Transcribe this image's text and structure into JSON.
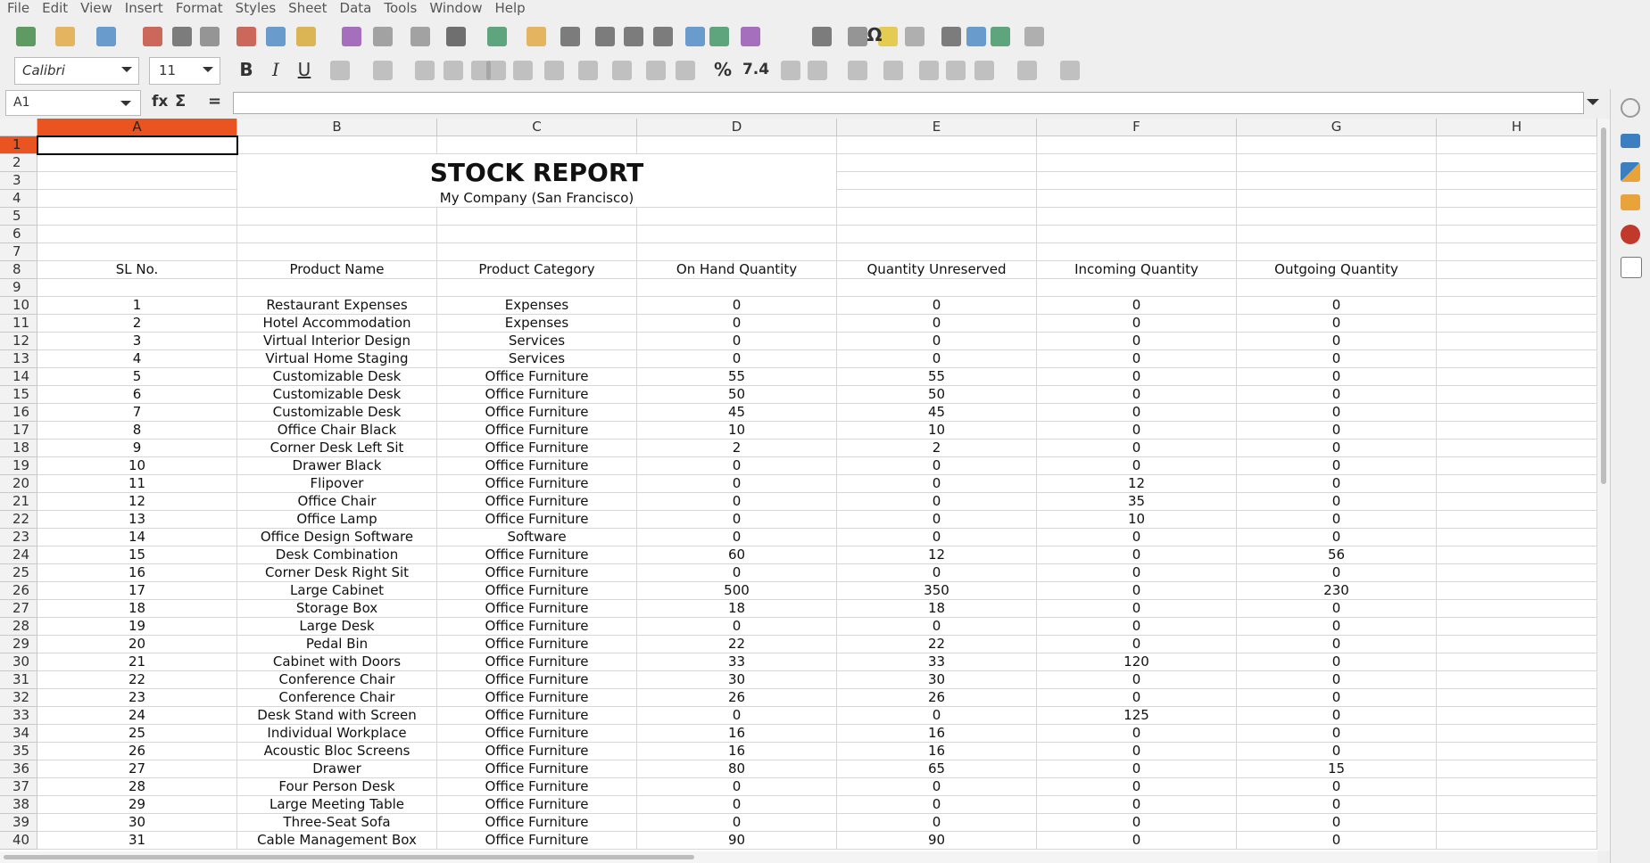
{
  "menu": [
    "File",
    "Edit",
    "View",
    "Insert",
    "Format",
    "Styles",
    "Sheet",
    "Data",
    "Tools",
    "Window",
    "Help"
  ],
  "toolbar": {
    "font_name": "Calibri",
    "font_size": "11",
    "bold": "B",
    "italic": "I",
    "underline": "U",
    "percent": "%",
    "number": "7.4",
    "special_char": "Ω"
  },
  "formula_bar": {
    "cell_ref": "A1",
    "function_wizard": "fx",
    "sum": "Σ",
    "formula": "="
  },
  "sheet": {
    "columns": [
      "A",
      "B",
      "C",
      "D",
      "E",
      "F",
      "G",
      "H"
    ],
    "row_numbers": [
      1,
      2,
      3,
      4,
      5,
      6,
      7,
      8,
      9,
      10,
      11,
      12,
      13,
      14,
      15,
      16,
      17,
      18,
      19,
      20,
      21,
      22,
      23,
      24,
      25,
      26,
      27,
      28,
      29,
      30,
      31,
      32,
      33,
      34,
      35,
      36,
      37,
      38,
      39,
      40
    ],
    "title": "STOCK REPORT",
    "subtitle": "My Company (San Francisco)",
    "headers": [
      "SL No.",
      "Product Name",
      "Product Category",
      "On Hand Quantity",
      "Quantity Unreserved",
      "Incoming Quantity",
      "Outgoing Quantity"
    ],
    "rows": [
      [
        1,
        "Restaurant Expenses",
        "Expenses",
        0,
        0,
        0,
        0
      ],
      [
        2,
        "Hotel Accommodation",
        "Expenses",
        0,
        0,
        0,
        0
      ],
      [
        3,
        "Virtual Interior Design",
        "Services",
        0,
        0,
        0,
        0
      ],
      [
        4,
        "Virtual Home Staging",
        "Services",
        0,
        0,
        0,
        0
      ],
      [
        5,
        "Customizable Desk",
        "Office Furniture",
        55,
        55,
        0,
        0
      ],
      [
        6,
        "Customizable Desk",
        "Office Furniture",
        50,
        50,
        0,
        0
      ],
      [
        7,
        "Customizable Desk",
        "Office Furniture",
        45,
        45,
        0,
        0
      ],
      [
        8,
        "Office Chair Black",
        "Office Furniture",
        10,
        10,
        0,
        0
      ],
      [
        9,
        "Corner Desk Left Sit",
        "Office Furniture",
        2,
        2,
        0,
        0
      ],
      [
        10,
        "Drawer Black",
        "Office Furniture",
        0,
        0,
        0,
        0
      ],
      [
        11,
        "Flipover",
        "Office Furniture",
        0,
        0,
        12,
        0
      ],
      [
        12,
        "Office Chair",
        "Office Furniture",
        0,
        0,
        35,
        0
      ],
      [
        13,
        "Office Lamp",
        "Office Furniture",
        0,
        0,
        10,
        0
      ],
      [
        14,
        "Office Design Software",
        "Software",
        0,
        0,
        0,
        0
      ],
      [
        15,
        "Desk Combination",
        "Office Furniture",
        60,
        12,
        0,
        56
      ],
      [
        16,
        "Corner Desk Right Sit",
        "Office Furniture",
        0,
        0,
        0,
        0
      ],
      [
        17,
        "Large Cabinet",
        "Office Furniture",
        500,
        350,
        0,
        230
      ],
      [
        18,
        "Storage Box",
        "Office Furniture",
        18,
        18,
        0,
        0
      ],
      [
        19,
        "Large Desk",
        "Office Furniture",
        0,
        0,
        0,
        0
      ],
      [
        20,
        "Pedal Bin",
        "Office Furniture",
        22,
        22,
        0,
        0
      ],
      [
        21,
        "Cabinet with Doors",
        "Office Furniture",
        33,
        33,
        120,
        0
      ],
      [
        22,
        "Conference Chair",
        "Office Furniture",
        30,
        30,
        0,
        0
      ],
      [
        23,
        "Conference Chair",
        "Office Furniture",
        26,
        26,
        0,
        0
      ],
      [
        24,
        "Desk Stand with Screen",
        "Office Furniture",
        0,
        0,
        125,
        0
      ],
      [
        25,
        "Individual Workplace",
        "Office Furniture",
        16,
        16,
        0,
        0
      ],
      [
        26,
        "Acoustic Bloc Screens",
        "Office Furniture",
        16,
        16,
        0,
        0
      ],
      [
        27,
        "Drawer",
        "Office Furniture",
        80,
        65,
        0,
        15
      ],
      [
        28,
        "Four Person Desk",
        "Office Furniture",
        0,
        0,
        0,
        0
      ],
      [
        29,
        "Large Meeting Table",
        "Office Furniture",
        0,
        0,
        0,
        0
      ],
      [
        30,
        "Three-Seat Sofa",
        "Office Furniture",
        0,
        0,
        0,
        0
      ],
      [
        31,
        "Cable Management Box",
        "Office Furniture",
        90,
        90,
        0,
        0
      ]
    ]
  }
}
